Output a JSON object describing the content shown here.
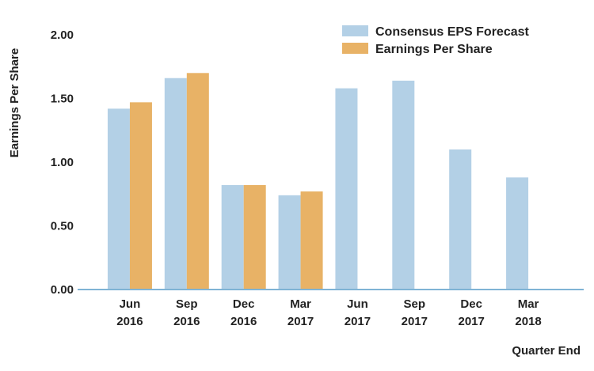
{
  "chart_data": {
    "type": "bar",
    "categories": [
      [
        "Jun",
        "2016"
      ],
      [
        "Sep",
        "2016"
      ],
      [
        "Dec",
        "2016"
      ],
      [
        "Mar",
        "2017"
      ],
      [
        "Jun",
        "2017"
      ],
      [
        "Sep",
        "2017"
      ],
      [
        "Dec",
        "2017"
      ],
      [
        "Mar",
        "2018"
      ]
    ],
    "series": [
      {
        "name": "Consensus EPS Forecast",
        "color": "#b3d0e6",
        "values": [
          1.42,
          1.66,
          0.82,
          0.74,
          1.58,
          1.64,
          1.1,
          0.88
        ]
      },
      {
        "name": "Earnings Per Share",
        "color": "#e8b266",
        "values": [
          1.47,
          1.7,
          0.82,
          0.77,
          null,
          null,
          null,
          null
        ]
      }
    ],
    "ylabel": "Earnings Per Share",
    "xlabel": "Quarter End",
    "ylim": [
      0,
      2.0
    ],
    "yticks": [
      "0.00",
      "0.50",
      "1.00",
      "1.50",
      "2.00"
    ],
    "legend_position": "top-right",
    "grid": false,
    "axis_color": "#7fb3d5"
  }
}
